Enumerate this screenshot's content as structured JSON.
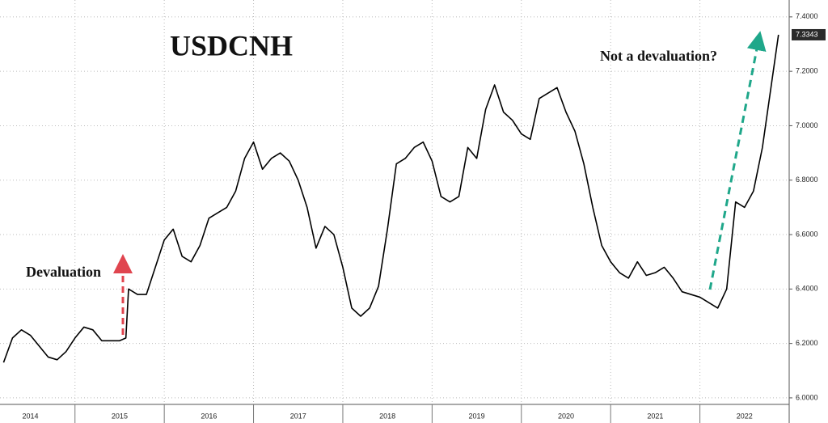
{
  "chart_data": {
    "type": "line",
    "title": "USDCNH",
    "annotations": [
      {
        "text": "Devaluation"
      },
      {
        "text": "Not a devaluation?"
      }
    ],
    "x": [
      2014.2,
      2014.3,
      2014.4,
      2014.5,
      2014.6,
      2014.7,
      2014.8,
      2014.9,
      2015.0,
      2015.1,
      2015.2,
      2015.3,
      2015.4,
      2015.5,
      2015.57,
      2015.6,
      2015.7,
      2015.8,
      2015.9,
      2016.0,
      2016.1,
      2016.2,
      2016.3,
      2016.4,
      2016.5,
      2016.6,
      2016.7,
      2016.8,
      2016.9,
      2017.0,
      2017.1,
      2017.2,
      2017.3,
      2017.4,
      2017.5,
      2017.6,
      2017.7,
      2017.8,
      2017.9,
      2018.0,
      2018.1,
      2018.2,
      2018.3,
      2018.4,
      2018.5,
      2018.6,
      2018.7,
      2018.8,
      2018.9,
      2019.0,
      2019.1,
      2019.2,
      2019.3,
      2019.4,
      2019.5,
      2019.6,
      2019.7,
      2019.8,
      2019.9,
      2020.0,
      2020.1,
      2020.2,
      2020.3,
      2020.4,
      2020.5,
      2020.6,
      2020.7,
      2020.8,
      2020.9,
      2021.0,
      2021.1,
      2021.2,
      2021.3,
      2021.4,
      2021.5,
      2021.6,
      2021.7,
      2021.8,
      2021.9,
      2022.0,
      2022.1,
      2022.2,
      2022.3,
      2022.4,
      2022.5,
      2022.6,
      2022.7,
      2022.8,
      2022.88
    ],
    "series": [
      {
        "color": "#000000",
        "values": [
          6.13,
          6.22,
          6.25,
          6.23,
          6.19,
          6.15,
          6.14,
          6.17,
          6.22,
          6.26,
          6.25,
          6.21,
          6.21,
          6.21,
          6.22,
          6.4,
          6.38,
          6.38,
          6.48,
          6.58,
          6.62,
          6.52,
          6.5,
          6.56,
          6.66,
          6.68,
          6.7,
          6.76,
          6.88,
          6.94,
          6.84,
          6.88,
          6.9,
          6.87,
          6.8,
          6.7,
          6.55,
          6.63,
          6.6,
          6.48,
          6.33,
          6.3,
          6.33,
          6.41,
          6.62,
          6.86,
          6.88,
          6.92,
          6.94,
          6.87,
          6.74,
          6.72,
          6.74,
          6.92,
          6.88,
          7.06,
          7.15,
          7.05,
          7.02,
          6.97,
          6.95,
          7.1,
          7.12,
          7.14,
          7.05,
          6.98,
          6.86,
          6.7,
          6.56,
          6.5,
          6.46,
          6.44,
          6.5,
          6.45,
          6.46,
          6.48,
          6.44,
          6.39,
          6.38,
          6.37,
          6.35,
          6.33,
          6.4,
          6.72,
          6.7,
          6.76,
          6.92,
          7.15,
          7.3343
        ]
      }
    ],
    "last_price": {
      "value": 7.3343,
      "label": "7.3343"
    },
    "xlim": [
      2014.16,
      2023
    ],
    "xticks": [
      {
        "value": 2014.5,
        "label": "2014"
      },
      {
        "value": 2015.5,
        "label": "2015"
      },
      {
        "value": 2016.5,
        "label": "2016"
      },
      {
        "value": 2017.5,
        "label": "2017"
      },
      {
        "value": 2018.5,
        "label": "2018"
      },
      {
        "value": 2019.5,
        "label": "2019"
      },
      {
        "value": 2020.5,
        "label": "2020"
      },
      {
        "value": 2021.5,
        "label": "2021"
      },
      {
        "value": 2022.5,
        "label": "2022"
      }
    ],
    "x_boundaries": [
      2015,
      2016,
      2017,
      2018,
      2019,
      2020,
      2021,
      2022
    ],
    "ylim": [
      5.976,
      7.462
    ],
    "yticks": [
      {
        "value": 6.0,
        "label": "6.0000"
      },
      {
        "value": 6.2,
        "label": "6.2000"
      },
      {
        "value": 6.4,
        "label": "6.4000"
      },
      {
        "value": 6.6,
        "label": "6.6000"
      },
      {
        "value": 6.8,
        "label": "6.8000"
      },
      {
        "value": 7.0,
        "label": "7.0000"
      },
      {
        "value": 7.2,
        "label": "7.2000"
      },
      {
        "value": 7.4,
        "label": "7.4000"
      }
    ],
    "grid": true
  }
}
